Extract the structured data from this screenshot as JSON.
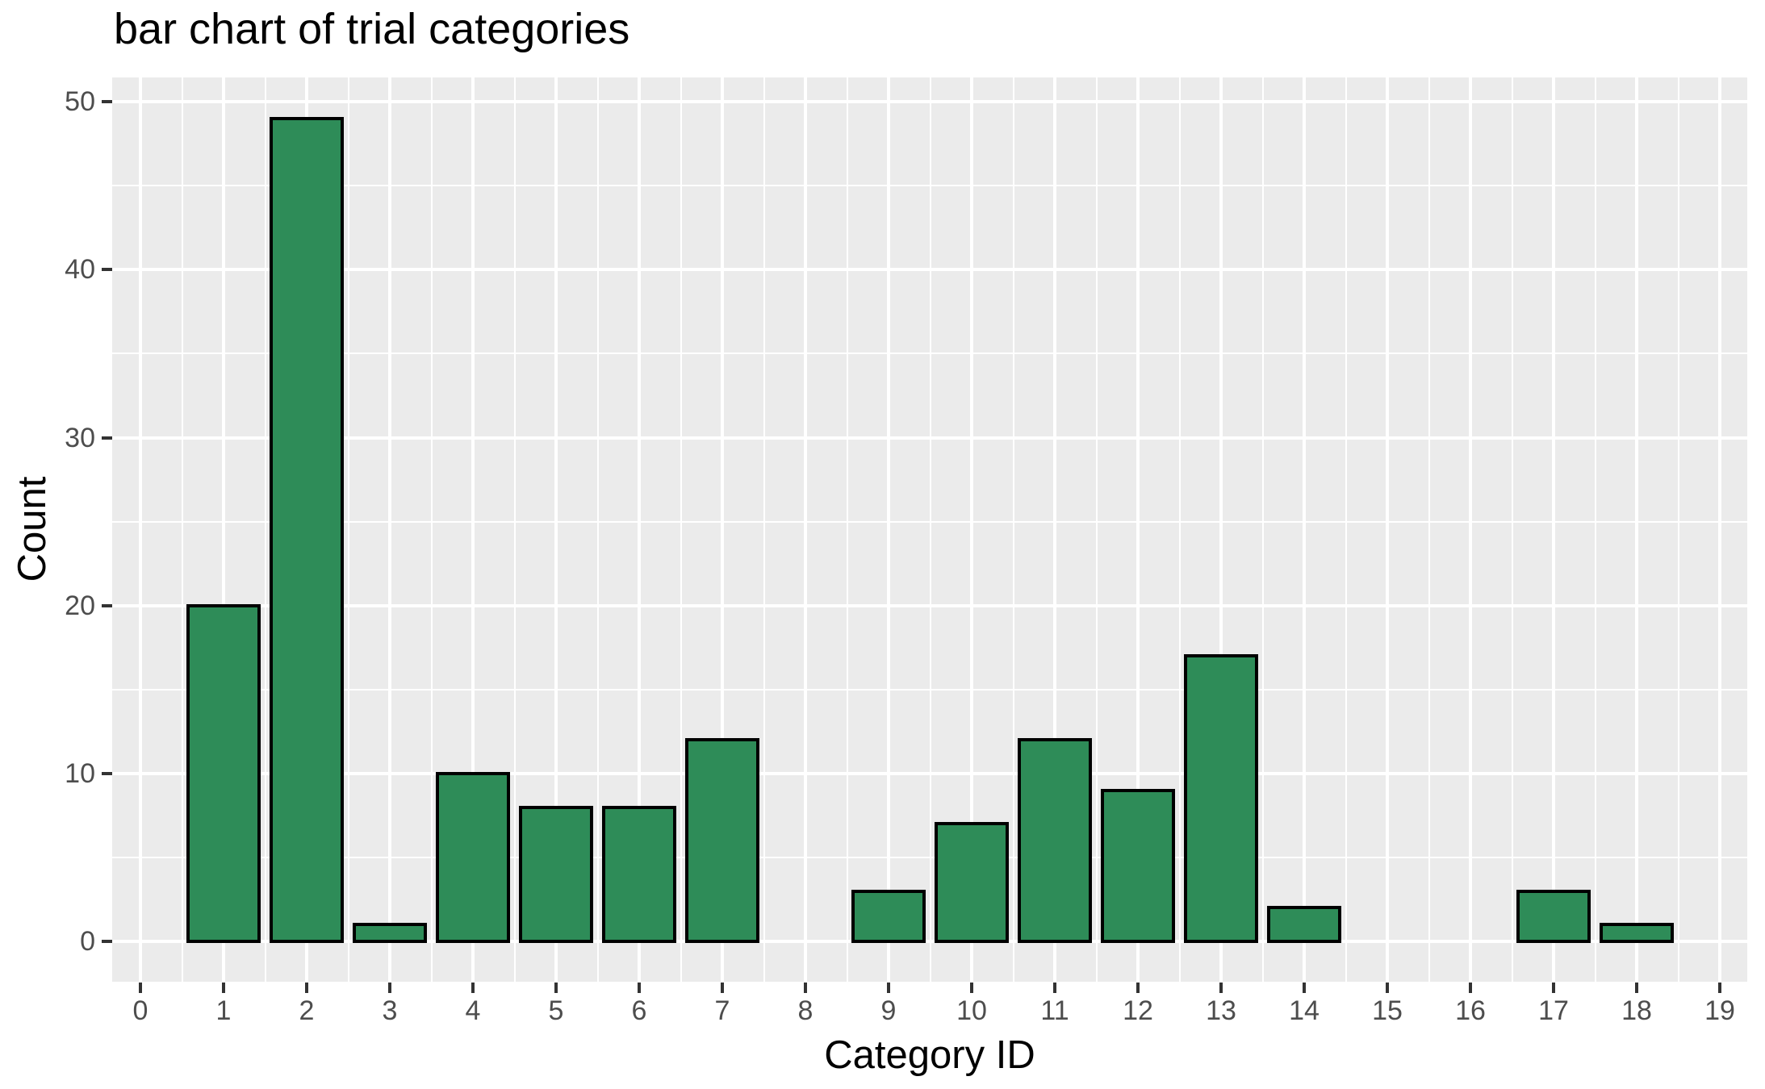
{
  "title": "bar chart of trial categories",
  "chart_data": {
    "type": "bar",
    "title": "bar chart of trial categories",
    "xlabel": "Category ID",
    "ylabel": "Count",
    "categories": [
      0,
      1,
      2,
      3,
      4,
      5,
      6,
      7,
      8,
      9,
      10,
      11,
      12,
      13,
      14,
      15,
      16,
      17,
      18,
      19
    ],
    "values": [
      0,
      20,
      49,
      1,
      10,
      8,
      8,
      12,
      0,
      3,
      7,
      12,
      9,
      17,
      2,
      0,
      0,
      3,
      1,
      0
    ],
    "x_tick_labels": [
      "0",
      "1",
      "2",
      "3",
      "4",
      "5",
      "6",
      "7",
      "8",
      "9",
      "10",
      "11",
      "12",
      "13",
      "14",
      "15",
      "16",
      "17",
      "18",
      "19"
    ],
    "y_tick_labels": [
      "0",
      "10",
      "20",
      "30",
      "40",
      "50"
    ],
    "y_major_breaks": [
      0,
      10,
      20,
      30,
      40,
      50
    ],
    "y_minor_breaks": [
      5,
      15,
      25,
      35,
      45
    ],
    "ylim": [
      -2.4,
      51.45
    ],
    "xlim": [
      -0.34,
      19.33
    ],
    "bar_width": 0.9,
    "grid": "major+minor",
    "legend": false,
    "colors": {
      "bar_fill": "#2E8C58",
      "bar_stroke": "#000000",
      "panel_background": "#EBEBEB",
      "gridline": "#FFFFFF",
      "tick_label": "#4D4D4D",
      "tick_mark": "#333333",
      "text": "#000000",
      "plot_background": "#FFFFFF"
    }
  }
}
